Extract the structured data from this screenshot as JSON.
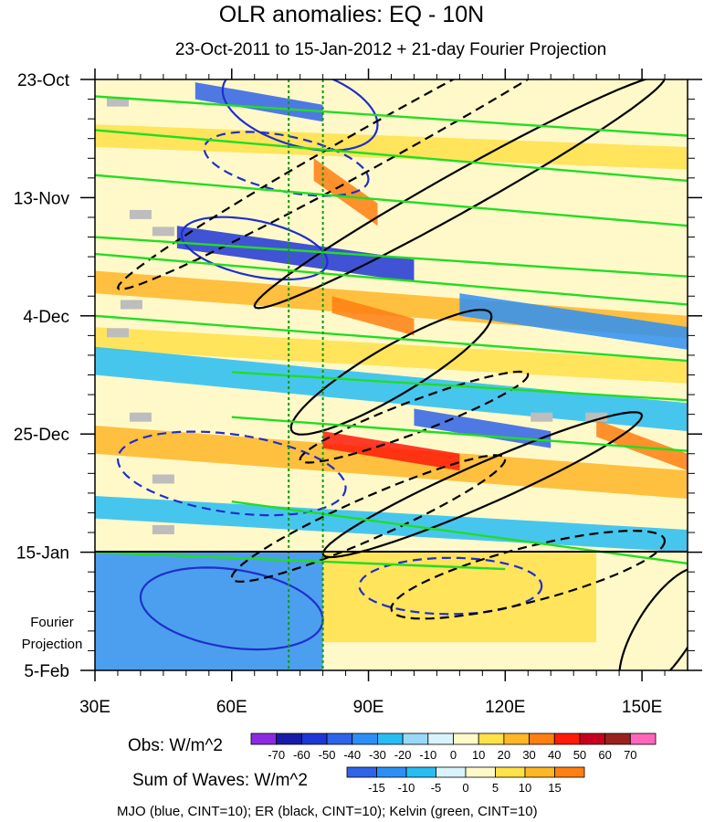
{
  "chart_data": {
    "type": "heatmap",
    "title": "OLR anomalies: EQ - 10N",
    "subtitle": "23-Oct-2011 to 15-Jan-2012 + 21-day Fourier Projection",
    "x_axis": {
      "label": "",
      "range": [
        30,
        160
      ],
      "ticks": [
        {
          "value": 30,
          "label": "30E"
        },
        {
          "value": 60,
          "label": "60E"
        },
        {
          "value": 90,
          "label": "90E"
        },
        {
          "value": 120,
          "label": "120E"
        },
        {
          "value": 150,
          "label": "150E"
        }
      ]
    },
    "y_axis": {
      "label": "",
      "range_days": [
        0,
        105
      ],
      "ticks": [
        {
          "day": 0,
          "label": "23-Oct"
        },
        {
          "day": 21,
          "label": "13-Nov"
        },
        {
          "day": 42,
          "label": "4-Dec"
        },
        {
          "day": 63,
          "label": "25-Dec"
        },
        {
          "day": 84,
          "label": "15-Jan"
        },
        {
          "day": 105,
          "label": "5-Feb"
        }
      ]
    },
    "projection_start_day": 84,
    "projection_label_line1": "Fourier",
    "projection_label_line2": "Projection",
    "reference_longitudes": [
      72.5,
      80
    ],
    "obs_colorbar": {
      "label": "Obs: W/m^2",
      "levels": [
        -70,
        -60,
        -50,
        -40,
        -30,
        -20,
        -10,
        0,
        10,
        20,
        30,
        40,
        50,
        60,
        70
      ],
      "colors": [
        "#8a2be2",
        "#1a1aa8",
        "#1f36d6",
        "#2f63e8",
        "#2d8ff5",
        "#27bdf3",
        "#9ad8f7",
        "#d8f3fb",
        "#fff9c9",
        "#ffe149",
        "#ffb627",
        "#ff7f12",
        "#ff1a0a",
        "#c8001f",
        "#98221f",
        "#ff66bb"
      ]
    },
    "waves_colorbar": {
      "label": "Sum of Waves: W/m^2",
      "levels": [
        -15,
        -10,
        -5,
        0,
        5,
        10,
        15
      ],
      "colors": [
        "#2f63e8",
        "#2d8ff5",
        "#27bdf3",
        "#d8f3fb",
        "#fff9c9",
        "#ffe149",
        "#ffb627",
        "#ff7f12"
      ]
    },
    "footnote": "MJO (blue, CINT=10); ER (black, CINT=10); Kelvin (green, CINT=10)",
    "anomaly_bands": [
      {
        "lon_start": 52,
        "day_start": 2,
        "lon_end": 80,
        "day_end": 6,
        "width_days": 3,
        "value": -40
      },
      {
        "lon_start": 78,
        "day_start": 16,
        "lon_end": 92,
        "day_end": 24,
        "width_days": 4,
        "value": 40
      },
      {
        "lon_start": 30,
        "day_start": 10,
        "lon_end": 160,
        "day_end": 14,
        "width_days": 4,
        "value": 20
      },
      {
        "lon_start": 48,
        "day_start": 28,
        "lon_end": 100,
        "day_end": 34,
        "width_days": 4,
        "value": -50
      },
      {
        "lon_start": 30,
        "day_start": 36,
        "lon_end": 160,
        "day_end": 44,
        "width_days": 4,
        "value": 30
      },
      {
        "lon_start": 82,
        "day_start": 40,
        "lon_end": 100,
        "day_end": 44,
        "width_days": 3,
        "value": 40
      },
      {
        "lon_start": 110,
        "day_start": 40,
        "lon_end": 160,
        "day_end": 46,
        "width_days": 4,
        "value": -30
      },
      {
        "lon_start": 30,
        "day_start": 46,
        "lon_end": 160,
        "day_end": 52,
        "width_days": 4,
        "value": 20
      },
      {
        "lon_start": 30,
        "day_start": 50,
        "lon_end": 160,
        "day_end": 60,
        "width_days": 5,
        "value": -20
      },
      {
        "lon_start": 30,
        "day_start": 64,
        "lon_end": 160,
        "day_end": 72,
        "width_days": 5,
        "value": 30
      },
      {
        "lon_start": 80,
        "day_start": 64,
        "lon_end": 110,
        "day_end": 68,
        "width_days": 3,
        "value": 50
      },
      {
        "lon_start": 100,
        "day_start": 60,
        "lon_end": 130,
        "day_end": 64,
        "width_days": 3,
        "value": -40
      },
      {
        "lon_start": 30,
        "day_start": 76,
        "lon_end": 160,
        "day_end": 82,
        "width_days": 4,
        "value": -20
      },
      {
        "lon_start": 140,
        "day_start": 62,
        "lon_end": 160,
        "day_end": 68,
        "width_days": 3,
        "value": 40
      }
    ],
    "projection_field": [
      {
        "lon_min": 30,
        "lon_max": 80,
        "day_min": 84,
        "day_max": 105,
        "value": -10
      },
      {
        "lon_min": 80,
        "lon_max": 140,
        "day_min": 84,
        "day_max": 100,
        "value": 10
      },
      {
        "lon_min": 140,
        "lon_max": 160,
        "day_min": 84,
        "day_max": 105,
        "value": 5
      }
    ],
    "missing_cells": [
      {
        "lon": 35,
        "day": 4
      },
      {
        "lon": 40,
        "day": 24
      },
      {
        "lon": 45,
        "day": 27
      },
      {
        "lon": 38,
        "day": 40
      },
      {
        "lon": 35,
        "day": 45
      },
      {
        "lon": 40,
        "day": 60
      },
      {
        "lon": 45,
        "day": 71
      },
      {
        "lon": 45,
        "day": 80
      },
      {
        "lon": 128,
        "day": 60
      },
      {
        "lon": 140,
        "day": 60
      }
    ],
    "mjo_contours": [
      {
        "style": "solid",
        "center_lon": 75,
        "center_day": 5,
        "radius_lon": 17,
        "radius_day": 7,
        "tilt_days_per_deg": 0.18
      },
      {
        "style": "solid",
        "center_lon": 65,
        "center_day": 30,
        "radius_lon": 16,
        "radius_day": 5,
        "tilt_days_per_deg": 0.15
      },
      {
        "style": "solid",
        "center_lon": 60,
        "center_day": 94,
        "radius_lon": 20,
        "radius_day": 7,
        "tilt_days_per_deg": 0.1
      },
      {
        "style": "dashed",
        "center_lon": 72,
        "center_day": 15,
        "radius_lon": 18,
        "radius_day": 5,
        "tilt_days_per_deg": 0.15
      },
      {
        "style": "dashed",
        "center_lon": 60,
        "center_day": 70,
        "radius_lon": 25,
        "radius_day": 7,
        "tilt_days_per_deg": 0.1
      },
      {
        "style": "dashed",
        "center_lon": 108,
        "center_day": 90,
        "radius_lon": 20,
        "radius_day": 5,
        "tilt_days_per_deg": 0.0
      }
    ],
    "er_contours": [
      {
        "style": "solid",
        "center_lon": 95,
        "center_day": 52,
        "radius_lon": 22,
        "radius_day": 5,
        "tilt_days_per_deg": -0.45
      },
      {
        "style": "solid",
        "center_lon": 115,
        "center_day": 72,
        "radius_lon": 35,
        "radius_day": 4,
        "tilt_days_per_deg": -0.35
      },
      {
        "style": "solid",
        "center_lon": 110,
        "center_day": 20,
        "radius_lon": 45,
        "radius_day": 4,
        "tilt_days_per_deg": -0.45
      },
      {
        "style": "dashed",
        "center_lon": 95,
        "center_day": 10,
        "radius_lon": 60,
        "radius_day": 4,
        "tilt_days_per_deg": -0.45
      },
      {
        "style": "dashed",
        "center_lon": 100,
        "center_day": 60,
        "radius_lon": 25,
        "radius_day": 3,
        "tilt_days_per_deg": -0.3
      },
      {
        "style": "dashed",
        "center_lon": 90,
        "center_day": 78,
        "radius_lon": 30,
        "radius_day": 4,
        "tilt_days_per_deg": -0.35
      },
      {
        "style": "dashed",
        "center_lon": 125,
        "center_day": 88,
        "radius_lon": 30,
        "radius_day": 5,
        "tilt_days_per_deg": -0.2
      },
      {
        "style": "solid",
        "center_lon": 155,
        "center_day": 98,
        "radius_lon": 10,
        "radius_day": 8,
        "tilt_days_per_deg": -0.8
      }
    ],
    "kelvin_lines": [
      {
        "lon_start": 30,
        "day_start": 3,
        "lon_end": 160,
        "day_end": 10
      },
      {
        "lon_start": 30,
        "day_start": 9,
        "lon_end": 160,
        "day_end": 18
      },
      {
        "lon_start": 30,
        "day_start": 17,
        "lon_end": 160,
        "day_end": 26
      },
      {
        "lon_start": 30,
        "day_start": 28,
        "lon_end": 160,
        "day_end": 35
      },
      {
        "lon_start": 30,
        "day_start": 31,
        "lon_end": 160,
        "day_end": 40
      },
      {
        "lon_start": 30,
        "day_start": 42,
        "lon_end": 160,
        "day_end": 50
      },
      {
        "lon_start": 60,
        "day_start": 52,
        "lon_end": 160,
        "day_end": 57
      },
      {
        "lon_start": 60,
        "day_start": 60,
        "lon_end": 160,
        "day_end": 66
      },
      {
        "lon_start": 60,
        "day_start": 75,
        "lon_end": 160,
        "day_end": 86
      },
      {
        "lon_start": 30,
        "day_start": 84,
        "lon_end": 120,
        "day_end": 87
      }
    ]
  }
}
